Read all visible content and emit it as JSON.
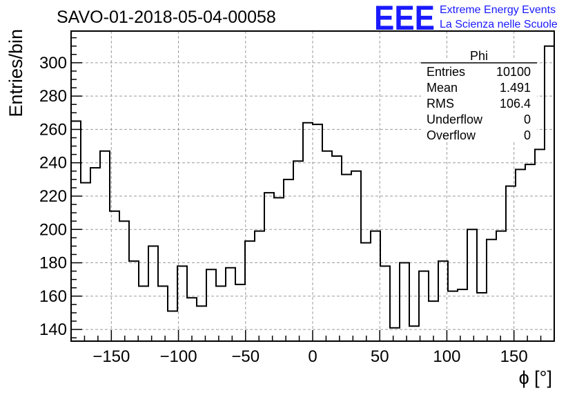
{
  "chart_data": {
    "type": "histogram",
    "title": "SAVO-01-2018-05-04-00058",
    "xlabel": "ϕ [°]",
    "ylabel": "Entries/bin",
    "xlim": [
      -180,
      180
    ],
    "ylim": [
      133,
      319
    ],
    "grid": true,
    "bin_width": 7.2,
    "x_ticks": [
      -150,
      -100,
      -50,
      0,
      50,
      100,
      150
    ],
    "x_tick_labels": [
      "−150",
      "−100",
      "−50",
      "0",
      "50",
      "100",
      "150"
    ],
    "y_ticks": [
      140,
      160,
      180,
      200,
      220,
      240,
      260,
      280,
      300
    ],
    "y_tick_labels": [
      "140",
      "160",
      "180",
      "200",
      "220",
      "240",
      "260",
      "280",
      "300"
    ],
    "values": [
      265,
      228,
      237,
      247,
      211,
      205,
      181,
      166,
      190,
      166,
      151,
      178,
      159,
      154,
      176,
      166,
      177,
      167,
      193,
      199,
      222,
      219,
      230,
      241,
      264,
      263,
      247,
      244,
      233,
      235,
      192,
      199,
      178,
      141,
      180,
      142,
      175,
      157,
      181,
      163,
      164,
      200,
      162,
      194,
      199,
      226,
      236,
      239,
      248,
      310
    ],
    "stats": {
      "name": "Phi",
      "rows": [
        {
          "label": "Entries",
          "value": "10100"
        },
        {
          "label": "Mean",
          "value": "1.491"
        },
        {
          "label": "RMS",
          "value": "106.4"
        },
        {
          "label": "Underflow",
          "value": "0"
        },
        {
          "label": "Overflow",
          "value": "0"
        }
      ]
    }
  },
  "branding": {
    "logo": "EEE",
    "line1": "Extreme Energy Events",
    "line2": "La Scienza nelle Scuole"
  },
  "colors": {
    "line": "#000000",
    "grid": "#9a9a9a",
    "brand": "#1a1aff"
  }
}
